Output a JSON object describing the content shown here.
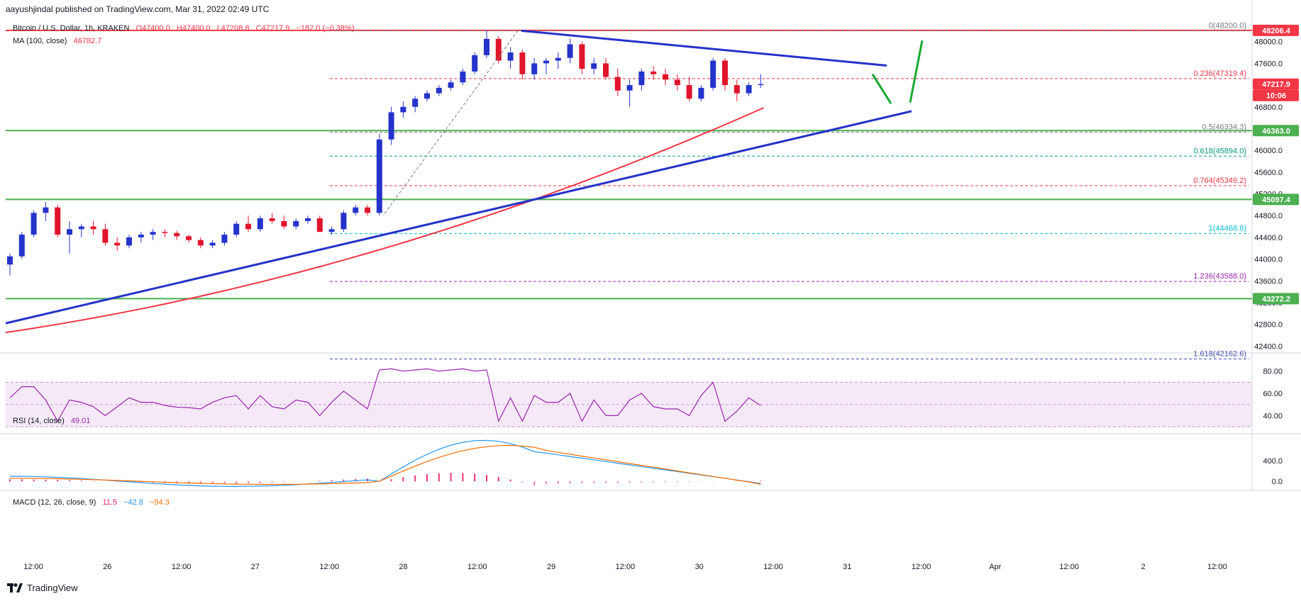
{
  "header": {
    "published": "aayushjindal published on TradingView.com, Mar 31, 2022 02:49 UTC"
  },
  "main_pane": {
    "symbol": "Bitcoin / U.S. Dollar, 1h, KRAKEN",
    "open": "O47400.0",
    "high": "H47400.0",
    "low": "L47208.8",
    "close": "C47217.9",
    "change": "−182.0 (−0.38%)",
    "ma_label": "MA (100, close)",
    "ma_value": "46782.7",
    "currency": "USD",
    "price_ticks": [
      "48000.0",
      "47600.0",
      "47200.0",
      "46800.0",
      "46400.0",
      "46000.0",
      "45600.0",
      "45200.0",
      "44800.0",
      "44400.0",
      "44000.0",
      "43600.0",
      "43200.0",
      "42800.0",
      "42400.0"
    ],
    "price_badges": [
      {
        "text": "48206.4",
        "color": "#f23645"
      },
      {
        "text": "47217.9",
        "color": "#f23645"
      },
      {
        "text": "10:06",
        "color": "#f23645"
      },
      {
        "text": "46363.0",
        "color": "#4caf50"
      },
      {
        "text": "45097.4",
        "color": "#4caf50"
      },
      {
        "text": "43272.2",
        "color": "#4caf50"
      }
    ],
    "fib_levels": [
      {
        "label": "0(48200.0)",
        "price": 48200.0,
        "color": "#787b86"
      },
      {
        "label": "0.236(47319.4)",
        "price": 47319.4,
        "color": "#f23645"
      },
      {
        "label": "0.5(46334.3)",
        "price": 46334.3,
        "color": "#787b86"
      },
      {
        "label": "0.618(45894.0)",
        "price": 45894.0,
        "color": "#089981"
      },
      {
        "label": "0.764(45349.2)",
        "price": 45349.2,
        "color": "#f23645"
      },
      {
        "label": "1(44468.6)",
        "price": 44468.6,
        "color": "#00bcd4"
      },
      {
        "label": "1.236(43588.0)",
        "price": 43588.0,
        "color": "#9c27b0"
      },
      {
        "label": "1.618(42162.6)",
        "price": 42162.6,
        "color": "#3f51b5"
      }
    ],
    "horizontal_levels": [
      48206.4,
      46363.0,
      45097.4,
      43272.2
    ]
  },
  "rsi_pane": {
    "label": "RSI (14, close)",
    "value": "49.01",
    "ticks": [
      "80.00",
      "60.00",
      "40.00"
    ]
  },
  "macd_pane": {
    "label": "MACD (12, 26, close, 9)",
    "v1": "11.5",
    "v2": "−42.8",
    "v3": "−54.3",
    "ticks": [
      "400.0",
      "0.0"
    ]
  },
  "time_axis": [
    "12:00",
    "26",
    "12:00",
    "27",
    "12:00",
    "28",
    "12:00",
    "29",
    "12:00",
    "30",
    "12:00",
    "31",
    "12:00",
    "Apr",
    "12:00",
    "2",
    "12:00"
  ],
  "footer": {
    "brand": "TradingView"
  },
  "colors": {
    "up_candle": "#2433c9",
    "down_candle": "#e0152b",
    "ma_line": "#f23645",
    "trend_line": "#2433c9",
    "projection": "#19a832",
    "level_line": "#4caf50",
    "rsi_line": "#9c27b0",
    "macd_line": "#2196f3",
    "signal_line": "#ff6d00"
  },
  "chart_data": {
    "type": "candlestick",
    "symbol": "Bitcoin / U.S. Dollar",
    "interval": "1h",
    "exchange": "KRAKEN",
    "y_range": [
      42300,
      48400
    ],
    "candles_approx": [
      [
        43900,
        44100,
        43700,
        44050
      ],
      [
        44050,
        44500,
        44000,
        44450
      ],
      [
        44450,
        44900,
        44400,
        44850
      ],
      [
        44850,
        45050,
        44700,
        44950
      ],
      [
        44950,
        45000,
        44400,
        44450
      ],
      [
        44450,
        44700,
        44100,
        44550
      ],
      [
        44550,
        44650,
        44400,
        44600
      ],
      [
        44600,
        44700,
        44450,
        44550
      ],
      [
        44550,
        44650,
        44250,
        44300
      ],
      [
        44300,
        44400,
        44150,
        44250
      ],
      [
        44250,
        44450,
        44200,
        44400
      ],
      [
        44400,
        44500,
        44300,
        44450
      ],
      [
        44450,
        44550,
        44350,
        44500
      ],
      [
        44500,
        44550,
        44400,
        44480
      ],
      [
        44480,
        44520,
        44350,
        44420
      ],
      [
        44420,
        44450,
        44300,
        44350
      ],
      [
        44350,
        44400,
        44200,
        44250
      ],
      [
        44250,
        44350,
        44200,
        44300
      ],
      [
        44300,
        44500,
        44250,
        44450
      ],
      [
        44450,
        44700,
        44400,
        44650
      ],
      [
        44650,
        44800,
        44500,
        44550
      ],
      [
        44550,
        44800,
        44500,
        44750
      ],
      [
        44750,
        44850,
        44650,
        44700
      ],
      [
        44700,
        44800,
        44550,
        44600
      ],
      [
        44600,
        44750,
        44550,
        44700
      ],
      [
        44700,
        44800,
        44650,
        44750
      ],
      [
        44750,
        44800,
        44600,
        44500
      ],
      [
        44500,
        44600,
        44450,
        44550
      ],
      [
        44550,
        44900,
        44500,
        44850
      ],
      [
        44850,
        45000,
        44800,
        44950
      ],
      [
        44950,
        45000,
        44800,
        44850
      ],
      [
        44850,
        46300,
        44800,
        46200
      ],
      [
        46200,
        46800,
        46100,
        46700
      ],
      [
        46700,
        46900,
        46600,
        46800
      ],
      [
        46800,
        47000,
        46700,
        46950
      ],
      [
        46950,
        47100,
        46900,
        47050
      ],
      [
        47050,
        47200,
        47000,
        47150
      ],
      [
        47150,
        47300,
        47100,
        47250
      ],
      [
        47250,
        47500,
        47200,
        47450
      ],
      [
        47450,
        47800,
        47400,
        47750
      ],
      [
        47750,
        48200,
        47700,
        48050
      ],
      [
        48050,
        48100,
        47600,
        47650
      ],
      [
        47650,
        47900,
        47500,
        47800
      ],
      [
        47800,
        47850,
        47300,
        47400
      ],
      [
        47400,
        47700,
        47300,
        47600
      ],
      [
        47600,
        47700,
        47400,
        47650
      ],
      [
        47650,
        47800,
        47500,
        47700
      ],
      [
        47700,
        48050,
        47600,
        47950
      ],
      [
        47950,
        48000,
        47400,
        47500
      ],
      [
        47500,
        47700,
        47400,
        47600
      ],
      [
        47600,
        47700,
        47300,
        47350
      ],
      [
        47350,
        47500,
        47000,
        47100
      ],
      [
        47100,
        47300,
        46800,
        47200
      ],
      [
        47200,
        47500,
        47100,
        47450
      ],
      [
        47450,
        47550,
        47300,
        47400
      ],
      [
        47400,
        47500,
        47200,
        47300
      ],
      [
        47300,
        47400,
        47100,
        47200
      ],
      [
        47200,
        47350,
        46900,
        46950
      ],
      [
        46950,
        47200,
        46900,
        47150
      ],
      [
        47150,
        47700,
        47100,
        47650
      ],
      [
        47650,
        47700,
        47100,
        47200
      ],
      [
        47200,
        47300,
        46900,
        47050
      ],
      [
        47050,
        47250,
        47000,
        47200
      ],
      [
        47200,
        47400,
        47150,
        47218
      ]
    ],
    "ma100_endpoints": [
      [
        0,
        42650
      ],
      [
        1,
        46782.7
      ]
    ],
    "rsi_range": [
      25,
      95
    ],
    "rsi_last": 49.01,
    "macd_range": [
      -150,
      900
    ],
    "macd_last": {
      "macd": -42.8,
      "signal": -54.3,
      "hist": 11.5
    }
  }
}
